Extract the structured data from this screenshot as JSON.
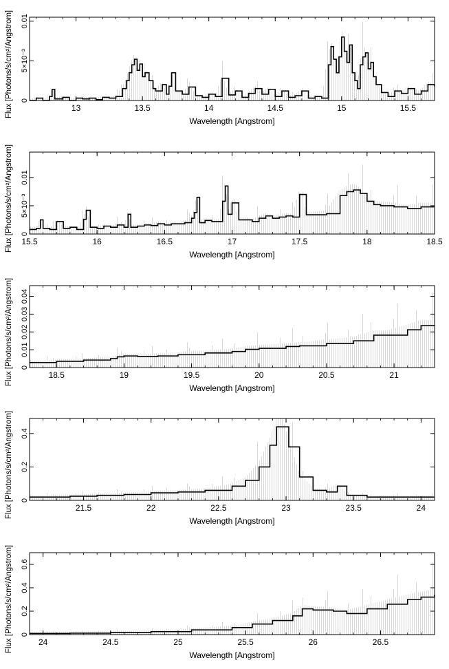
{
  "chart_data": [
    {
      "type": "line",
      "xlabel": "Wavelength [Angstrom]",
      "ylabel": "Flux [Photons/s/cm²/Angstrom]",
      "xlim": [
        12.65,
        15.7
      ],
      "ylim": [
        0,
        0.0105
      ],
      "xticks": [
        13,
        13.5,
        14,
        14.5,
        15,
        15.5
      ],
      "xtick_labels": [
        "13",
        "13.5",
        "14",
        "14.5",
        "15",
        "15.5"
      ],
      "yticks": [
        0,
        0.005,
        0.01
      ],
      "ytick_labels": [
        "0",
        "5×10⁻³",
        "0.01"
      ],
      "series": [
        {
          "values": [
            [
              12.65,
              0
            ],
            [
              12.7,
              0.0003
            ],
            [
              12.75,
              0
            ],
            [
              12.8,
              0.0005
            ],
            [
              12.82,
              0.0014
            ],
            [
              12.84,
              0.0002
            ],
            [
              12.9,
              0.0004
            ],
            [
              12.95,
              0
            ],
            [
              13.0,
              0.0003
            ],
            [
              13.05,
              0.0002
            ],
            [
              13.1,
              0.0003
            ],
            [
              13.15,
              0.0001
            ],
            [
              13.2,
              0.0004
            ],
            [
              13.25,
              0.0003
            ],
            [
              13.3,
              0.0005
            ],
            [
              13.35,
              0.0015
            ],
            [
              13.38,
              0.0025
            ],
            [
              13.4,
              0.0035
            ],
            [
              13.42,
              0.0045
            ],
            [
              13.44,
              0.0052
            ],
            [
              13.46,
              0.0038
            ],
            [
              13.48,
              0.0046
            ],
            [
              13.5,
              0.003
            ],
            [
              13.52,
              0.0035
            ],
            [
              13.55,
              0.0025
            ],
            [
              13.58,
              0.0015
            ],
            [
              13.6,
              0.0012
            ],
            [
              13.65,
              0.002
            ],
            [
              13.68,
              0.0008
            ],
            [
              13.7,
              0.0018
            ],
            [
              13.72,
              0.0035
            ],
            [
              13.75,
              0.0012
            ],
            [
              13.8,
              0.0008
            ],
            [
              13.85,
              0.0017
            ],
            [
              13.9,
              0.0006
            ],
            [
              13.95,
              0.0004
            ],
            [
              14.0,
              0.0008
            ],
            [
              14.05,
              0.0005
            ],
            [
              14.1,
              0.0028
            ],
            [
              14.15,
              0.0007
            ],
            [
              14.2,
              0.0012
            ],
            [
              14.25,
              0.0004
            ],
            [
              14.3,
              0.0009
            ],
            [
              14.35,
              0.0015
            ],
            [
              14.4,
              0.0008
            ],
            [
              14.45,
              0.0014
            ],
            [
              14.5,
              0.0005
            ],
            [
              14.55,
              0.0012
            ],
            [
              14.6,
              0.0004
            ],
            [
              14.65,
              0.0006
            ],
            [
              14.7,
              0.0012
            ],
            [
              14.75,
              0.0003
            ],
            [
              14.8,
              0.0005
            ],
            [
              14.85,
              0.0003
            ],
            [
              14.9,
              0.0045
            ],
            [
              14.92,
              0.0068
            ],
            [
              14.94,
              0.0052
            ],
            [
              14.96,
              0.0035
            ],
            [
              14.98,
              0.0055
            ],
            [
              15.0,
              0.008
            ],
            [
              15.02,
              0.0062
            ],
            [
              15.04,
              0.0048
            ],
            [
              15.06,
              0.007
            ],
            [
              15.08,
              0.0035
            ],
            [
              15.1,
              0.0025
            ],
            [
              15.12,
              0.0015
            ],
            [
              15.14,
              0.0045
            ],
            [
              15.16,
              0.0055
            ],
            [
              15.18,
              0.006
            ],
            [
              15.2,
              0.004
            ],
            [
              15.22,
              0.0048
            ],
            [
              15.24,
              0.003
            ],
            [
              15.26,
              0.002
            ],
            [
              15.3,
              0.001
            ],
            [
              15.35,
              0.0005
            ],
            [
              15.4,
              0.0012
            ],
            [
              15.45,
              0.0009
            ],
            [
              15.5,
              0.0015
            ],
            [
              15.55,
              0.0008
            ],
            [
              15.6,
              0.0012
            ],
            [
              15.65,
              0.002
            ],
            [
              15.7,
              0.0018
            ]
          ]
        }
      ]
    },
    {
      "type": "line",
      "xlabel": "Wavelength [Angstrom]",
      "ylabel": "Flux [Photons/s/cm²/Angstrom]",
      "xlim": [
        15.5,
        18.5
      ],
      "ylim": [
        0,
        0.0145
      ],
      "xticks": [
        15.5,
        16,
        16.5,
        17,
        17.5,
        18,
        18.5
      ],
      "xtick_labels": [
        "15.5",
        "16",
        "16.5",
        "17",
        "17.5",
        "18",
        "18.5"
      ],
      "yticks": [
        0,
        0.005,
        0.01
      ],
      "ytick_labels": [
        "0",
        "5×10⁻³",
        "0.01"
      ],
      "series": [
        {
          "values": [
            [
              15.5,
              0.0008
            ],
            [
              15.55,
              0.001
            ],
            [
              15.58,
              0.0025
            ],
            [
              15.6,
              0.001
            ],
            [
              15.65,
              0.0008
            ],
            [
              15.7,
              0.0022
            ],
            [
              15.75,
              0.001
            ],
            [
              15.8,
              0.0012
            ],
            [
              15.85,
              0.0008
            ],
            [
              15.9,
              0.0026
            ],
            [
              15.92,
              0.0042
            ],
            [
              15.95,
              0.0012
            ],
            [
              16.0,
              0.001
            ],
            [
              16.05,
              0.0014
            ],
            [
              16.1,
              0.0012
            ],
            [
              16.15,
              0.0016
            ],
            [
              16.2,
              0.0012
            ],
            [
              16.23,
              0.0035
            ],
            [
              16.25,
              0.0012
            ],
            [
              16.3,
              0.0014
            ],
            [
              16.35,
              0.0016
            ],
            [
              16.4,
              0.0015
            ],
            [
              16.45,
              0.0018
            ],
            [
              16.5,
              0.0016
            ],
            [
              16.55,
              0.0018
            ],
            [
              16.6,
              0.0018
            ],
            [
              16.65,
              0.002
            ],
            [
              16.7,
              0.0028
            ],
            [
              16.72,
              0.0038
            ],
            [
              16.74,
              0.0065
            ],
            [
              16.76,
              0.002
            ],
            [
              16.8,
              0.0024
            ],
            [
              16.85,
              0.0022
            ],
            [
              16.9,
              0.0022
            ],
            [
              16.93,
              0.0058
            ],
            [
              16.95,
              0.0085
            ],
            [
              16.97,
              0.0035
            ],
            [
              17.0,
              0.0055
            ],
            [
              17.05,
              0.0025
            ],
            [
              17.1,
              0.0025
            ],
            [
              17.15,
              0.0022
            ],
            [
              17.2,
              0.0028
            ],
            [
              17.25,
              0.0032
            ],
            [
              17.3,
              0.0028
            ],
            [
              17.35,
              0.003
            ],
            [
              17.4,
              0.0032
            ],
            [
              17.45,
              0.003
            ],
            [
              17.5,
              0.007
            ],
            [
              17.55,
              0.0034
            ],
            [
              17.6,
              0.0034
            ],
            [
              17.7,
              0.0036
            ],
            [
              17.8,
              0.0068
            ],
            [
              17.85,
              0.0075
            ],
            [
              17.9,
              0.0078
            ],
            [
              17.95,
              0.0072
            ],
            [
              18.0,
              0.0058
            ],
            [
              18.05,
              0.0052
            ],
            [
              18.1,
              0.005
            ],
            [
              18.2,
              0.0048
            ],
            [
              18.3,
              0.0045
            ],
            [
              18.4,
              0.0048
            ],
            [
              18.5,
              0.0048
            ]
          ]
        }
      ]
    },
    {
      "type": "line",
      "xlabel": "Wavelength [Angstrom]",
      "ylabel": "Flux [Photons/s/cm²/Angstrom]",
      "xlim": [
        18.3,
        21.3
      ],
      "ylim": [
        0,
        0.046
      ],
      "xticks": [
        18.5,
        19,
        19.5,
        20,
        20.5,
        21
      ],
      "xtick_labels": [
        "18.5",
        "19",
        "19.5",
        "20",
        "20.5",
        "21"
      ],
      "yticks": [
        0,
        0.01,
        0.02,
        0.03,
        0.04
      ],
      "ytick_labels": [
        "0",
        "0.01",
        "0.02",
        "0.03",
        "0.04"
      ],
      "series": [
        {
          "values": [
            [
              18.3,
              0.0028
            ],
            [
              18.5,
              0.0035
            ],
            [
              18.7,
              0.0042
            ],
            [
              18.9,
              0.005
            ],
            [
              18.95,
              0.006
            ],
            [
              19.0,
              0.0065
            ],
            [
              19.1,
              0.0062
            ],
            [
              19.25,
              0.0065
            ],
            [
              19.4,
              0.0072
            ],
            [
              19.6,
              0.0082
            ],
            [
              19.8,
              0.009
            ],
            [
              19.9,
              0.0102
            ],
            [
              20.0,
              0.0108
            ],
            [
              20.2,
              0.0118
            ],
            [
              20.3,
              0.0122
            ],
            [
              20.5,
              0.0135
            ],
            [
              20.7,
              0.015
            ],
            [
              20.85,
              0.0182
            ],
            [
              20.95,
              0.0182
            ],
            [
              21.1,
              0.0212
            ],
            [
              21.2,
              0.0235
            ],
            [
              21.3,
              0.0232
            ]
          ]
        }
      ]
    },
    {
      "type": "line",
      "xlabel": "Wavelength [Angstrom]",
      "ylabel": "Flux [Photons/s/cm²/Angstrom]",
      "xlim": [
        21.1,
        24.1
      ],
      "ylim": [
        0,
        0.49
      ],
      "xticks": [
        21.5,
        22,
        22.5,
        23,
        23.5,
        24
      ],
      "xtick_labels": [
        "21.5",
        "22",
        "22.5",
        "23",
        "23.5",
        "24"
      ],
      "yticks": [
        0,
        0.2,
        0.4
      ],
      "ytick_labels": [
        "0",
        "0.2",
        "0.4"
      ],
      "series": [
        {
          "values": [
            [
              21.1,
              0.02
            ],
            [
              21.4,
              0.025
            ],
            [
              21.6,
              0.03
            ],
            [
              21.8,
              0.035
            ],
            [
              22.0,
              0.045
            ],
            [
              22.2,
              0.05
            ],
            [
              22.4,
              0.06
            ],
            [
              22.6,
              0.085
            ],
            [
              22.7,
              0.12
            ],
            [
              22.8,
              0.2
            ],
            [
              22.88,
              0.33
            ],
            [
              22.93,
              0.44
            ],
            [
              22.97,
              0.44
            ],
            [
              23.02,
              0.32
            ],
            [
              23.1,
              0.14
            ],
            [
              23.2,
              0.06
            ],
            [
              23.3,
              0.05
            ],
            [
              23.38,
              0.085
            ],
            [
              23.45,
              0.03
            ],
            [
              23.6,
              0.02
            ],
            [
              23.8,
              0.02
            ],
            [
              24.1,
              0.02
            ]
          ]
        }
      ]
    },
    {
      "type": "line",
      "xlabel": "Wavelength [Angstrom]",
      "ylabel": "Flux [Photons/s/cm²/Angstrom]",
      "xlim": [
        23.9,
        26.9
      ],
      "ylim": [
        0,
        0.7
      ],
      "xticks": [
        24,
        24.5,
        25,
        25.5,
        26,
        26.5
      ],
      "xtick_labels": [
        "24",
        "24.5",
        "25",
        "25.5",
        "26",
        "26.5"
      ],
      "yticks": [
        0,
        0.2,
        0.4,
        0.6
      ],
      "ytick_labels": [
        "0",
        "0.2",
        "0.4",
        "0.6"
      ],
      "series": [
        {
          "values": [
            [
              23.9,
              0.01
            ],
            [
              24.2,
              0.012
            ],
            [
              24.5,
              0.018
            ],
            [
              24.8,
              0.025
            ],
            [
              25.1,
              0.04
            ],
            [
              25.4,
              0.06
            ],
            [
              25.55,
              0.09
            ],
            [
              25.7,
              0.12
            ],
            [
              25.85,
              0.16
            ],
            [
              25.92,
              0.22
            ],
            [
              26.0,
              0.21
            ],
            [
              26.15,
              0.2
            ],
            [
              26.25,
              0.18
            ],
            [
              26.4,
              0.22
            ],
            [
              26.55,
              0.26
            ],
            [
              26.7,
              0.3
            ],
            [
              26.8,
              0.32
            ],
            [
              26.9,
              0.34
            ]
          ]
        }
      ]
    }
  ]
}
